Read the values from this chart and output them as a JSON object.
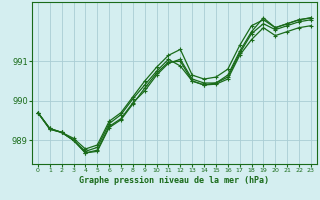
{
  "background_color": "#d4eef0",
  "grid_color": "#aacdd4",
  "line_color": "#1a6b1a",
  "xlabel": "Graphe pression niveau de la mer (hPa)",
  "xlim": [
    -0.5,
    23.5
  ],
  "ylim": [
    988.4,
    992.5
  ],
  "yticks": [
    989,
    990,
    991
  ],
  "xticks": [
    0,
    1,
    2,
    3,
    4,
    5,
    6,
    7,
    8,
    9,
    10,
    11,
    12,
    13,
    14,
    15,
    16,
    17,
    18,
    19,
    20,
    21,
    22,
    23
  ],
  "series": [
    [
      989.7,
      989.3,
      989.2,
      989.0,
      988.68,
      988.75,
      989.35,
      989.55,
      989.95,
      990.25,
      990.65,
      990.95,
      991.05,
      990.55,
      990.45,
      990.45,
      990.65,
      991.25,
      991.75,
      992.1,
      991.85,
      991.95,
      992.05,
      992.1
    ],
    [
      989.7,
      989.3,
      989.2,
      989.0,
      988.72,
      988.82,
      989.42,
      989.65,
      990.05,
      990.4,
      990.75,
      991.05,
      990.88,
      990.5,
      990.4,
      990.45,
      990.6,
      991.2,
      991.7,
      991.95,
      991.8,
      991.9,
      992.0,
      992.05
    ],
    [
      989.7,
      989.28,
      989.2,
      989.05,
      988.78,
      988.88,
      989.48,
      989.7,
      990.1,
      990.5,
      990.85,
      991.15,
      991.3,
      990.65,
      990.55,
      990.6,
      990.8,
      991.4,
      991.9,
      992.05,
      991.85,
      991.95,
      992.05,
      992.1
    ],
    [
      989.7,
      989.28,
      989.2,
      989.0,
      988.68,
      988.72,
      989.32,
      989.52,
      989.92,
      990.32,
      990.7,
      990.98,
      991.0,
      990.5,
      990.4,
      990.42,
      990.55,
      991.15,
      991.55,
      991.85,
      991.65,
      991.75,
      991.85,
      991.9
    ]
  ]
}
